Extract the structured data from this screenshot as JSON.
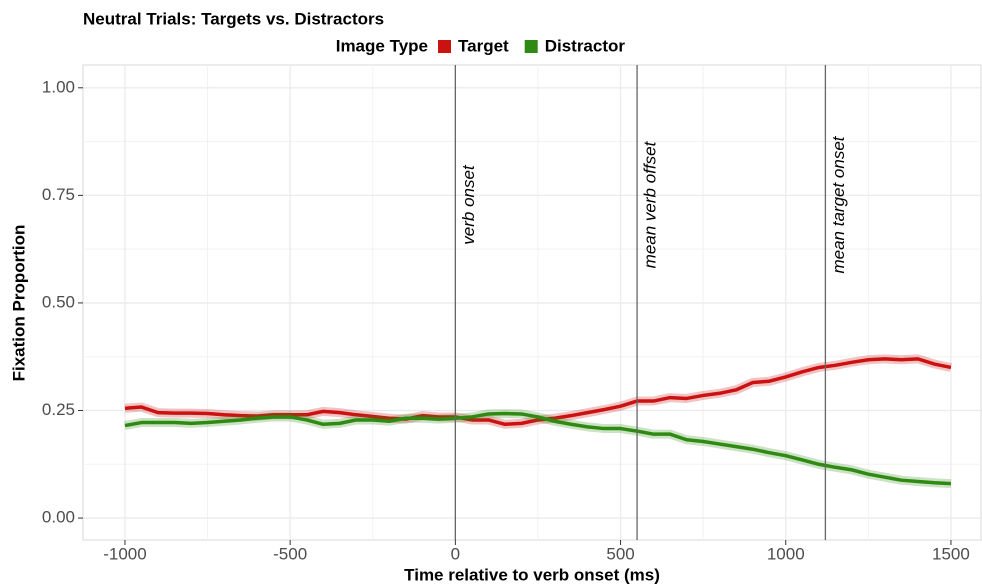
{
  "chart_data": {
    "type": "line",
    "title": "Neutral Trials: Targets vs. Distractors",
    "legend_title": "Image Type",
    "xlabel": "Time relative to verb onset (ms)",
    "ylabel": "Fixation Proportion",
    "x": [
      -1000,
      -950,
      -900,
      -850,
      -800,
      -750,
      -700,
      -650,
      -600,
      -550,
      -500,
      -450,
      -400,
      -350,
      -300,
      -250,
      -200,
      -150,
      -100,
      -50,
      0,
      50,
      100,
      150,
      200,
      250,
      300,
      350,
      400,
      450,
      500,
      550,
      600,
      650,
      700,
      750,
      800,
      850,
      900,
      950,
      1000,
      1050,
      1100,
      1150,
      1200,
      1250,
      1300,
      1350,
      1400,
      1450,
      1500
    ],
    "series": [
      {
        "name": "Target",
        "color": "#cc1111",
        "values": [
          0.255,
          0.258,
          0.245,
          0.244,
          0.244,
          0.243,
          0.24,
          0.238,
          0.237,
          0.24,
          0.24,
          0.24,
          0.248,
          0.245,
          0.24,
          0.236,
          0.232,
          0.23,
          0.238,
          0.235,
          0.235,
          0.228,
          0.228,
          0.218,
          0.22,
          0.228,
          0.232,
          0.238,
          0.245,
          0.252,
          0.26,
          0.272,
          0.272,
          0.28,
          0.278,
          0.285,
          0.29,
          0.298,
          0.315,
          0.318,
          0.328,
          0.34,
          0.35,
          0.355,
          0.362,
          0.368,
          0.37,
          0.368,
          0.37,
          0.358,
          0.35
        ]
      },
      {
        "name": "Distractor",
        "color": "#2e8a12",
        "values": [
          0.215,
          0.222,
          0.222,
          0.222,
          0.22,
          0.222,
          0.225,
          0.228,
          0.232,
          0.235,
          0.235,
          0.228,
          0.218,
          0.22,
          0.228,
          0.228,
          0.225,
          0.232,
          0.232,
          0.23,
          0.232,
          0.235,
          0.242,
          0.243,
          0.242,
          0.235,
          0.225,
          0.218,
          0.212,
          0.208,
          0.208,
          0.202,
          0.195,
          0.195,
          0.182,
          0.178,
          0.172,
          0.166,
          0.16,
          0.152,
          0.145,
          0.135,
          0.125,
          0.118,
          0.112,
          0.102,
          0.095,
          0.088,
          0.085,
          0.082,
          0.08
        ]
      }
    ],
    "vlines": [
      {
        "x": 0,
        "label": "verb onset"
      },
      {
        "x": 550,
        "label": "mean verb offset"
      },
      {
        "x": 1120,
        "label": "mean target onset"
      }
    ],
    "xlim": [
      -1127,
      1594
    ],
    "ylim": [
      -0.051,
      1.053
    ],
    "xticks": [
      -1000,
      -500,
      0,
      500,
      1000,
      1500
    ],
    "yticks": [
      {
        "value": 0,
        "label": "0.00"
      },
      {
        "value": 0.25,
        "label": "0.25"
      },
      {
        "value": 0.5,
        "label": "0.50"
      },
      {
        "value": 0.75,
        "label": "0.75"
      },
      {
        "value": 1,
        "label": "1.00"
      }
    ],
    "grid": true
  }
}
